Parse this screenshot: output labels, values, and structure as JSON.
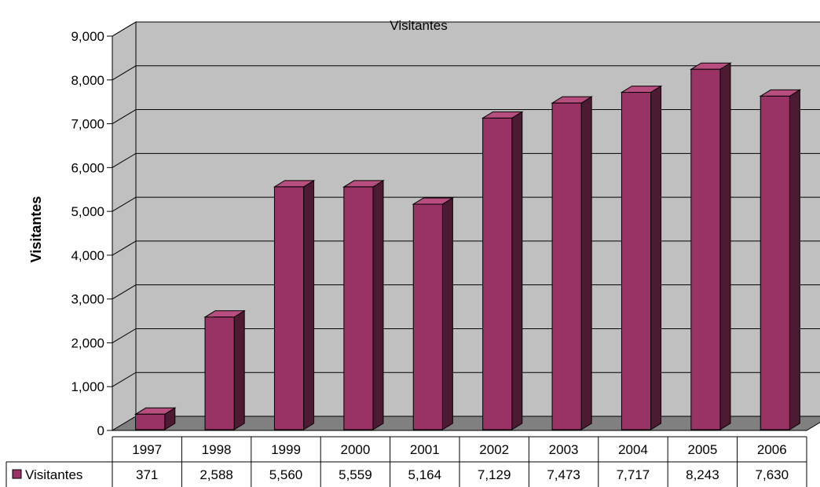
{
  "chart_data": {
    "type": "bar",
    "title": "Visitantes",
    "ylabel": "Visitantes",
    "xlabel": "",
    "categories": [
      "1997",
      "1998",
      "1999",
      "2000",
      "2001",
      "2002",
      "2003",
      "2004",
      "2005",
      "2006"
    ],
    "series": [
      {
        "name": "Visitantes",
        "values": [
          371,
          2588,
          5560,
          5559,
          5164,
          7129,
          7473,
          7717,
          8243,
          7630
        ],
        "value_labels": [
          "371",
          "2,588",
          "5,560",
          "5,559",
          "5,164",
          "7,129",
          "7,473",
          "7,717",
          "8,243",
          "7,630"
        ]
      }
    ],
    "ylim": [
      0,
      9000
    ],
    "yticks": [
      {
        "v": 0,
        "label": "0"
      },
      {
        "v": 1000,
        "label": "1,000"
      },
      {
        "v": 2000,
        "label": "2,000"
      },
      {
        "v": 3000,
        "label": "3,000"
      },
      {
        "v": 4000,
        "label": "4,000"
      },
      {
        "v": 5000,
        "label": "5,000"
      },
      {
        "v": 6000,
        "label": "6,000"
      },
      {
        "v": 7000,
        "label": "7,000"
      },
      {
        "v": 8000,
        "label": "8,000"
      },
      {
        "v": 9000,
        "label": "9,000"
      }
    ],
    "grid": true,
    "style": "3d-column",
    "data_table": true,
    "colors": {
      "bar_front": "#993366",
      "bar_top": "#b84d80",
      "bar_side": "#4d1a33",
      "wall": "#c0c0c0",
      "floor": "#808080",
      "grid": "#000000"
    }
  }
}
